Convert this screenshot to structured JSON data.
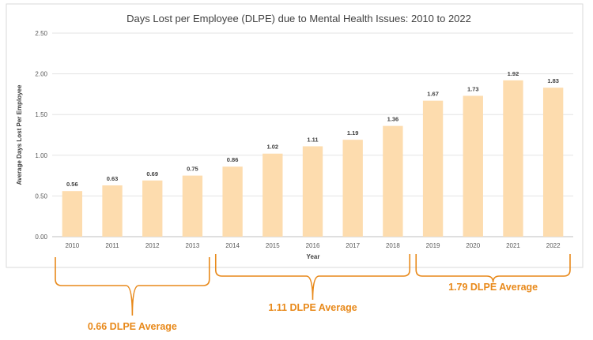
{
  "chart_data": {
    "type": "bar",
    "title": "Days Lost per Employee (DLPE) due to Mental Health Issues: 2010 to 2022",
    "xlabel": "Year",
    "ylabel": "Average Days Lost Per Employee",
    "categories": [
      "2010",
      "2011",
      "2012",
      "2013",
      "2014",
      "2015",
      "2016",
      "2017",
      "2018",
      "2019",
      "2020",
      "2021",
      "2022"
    ],
    "values": [
      0.56,
      0.63,
      0.69,
      0.75,
      0.86,
      1.02,
      1.11,
      1.19,
      1.36,
      1.67,
      1.73,
      1.92,
      1.83
    ],
    "value_labels": [
      "0.56",
      "0.63",
      "0.69",
      "0.75",
      "0.86",
      "1.02",
      "1.11",
      "1.19",
      "1.36",
      "1.67",
      "1.73",
      "1.92",
      "1.83"
    ],
    "ylim": [
      0,
      2.5
    ],
    "yticks": [
      "0.00",
      "0.50",
      "1.00",
      "1.50",
      "2.00",
      "2.50"
    ],
    "grid": true,
    "bar_color": "#FDDCAE",
    "annotations": [
      {
        "text": "0.66 DLPE Average",
        "from": "2010",
        "to": "2013",
        "position": "below"
      },
      {
        "text": "1.11 DLPE Average",
        "from": "2014",
        "to": "2018",
        "position": "below"
      },
      {
        "text": "1.79 DLPE Average",
        "from": "2019",
        "to": "2022",
        "position": "below"
      }
    ],
    "annotation_color": "#E8891A"
  }
}
